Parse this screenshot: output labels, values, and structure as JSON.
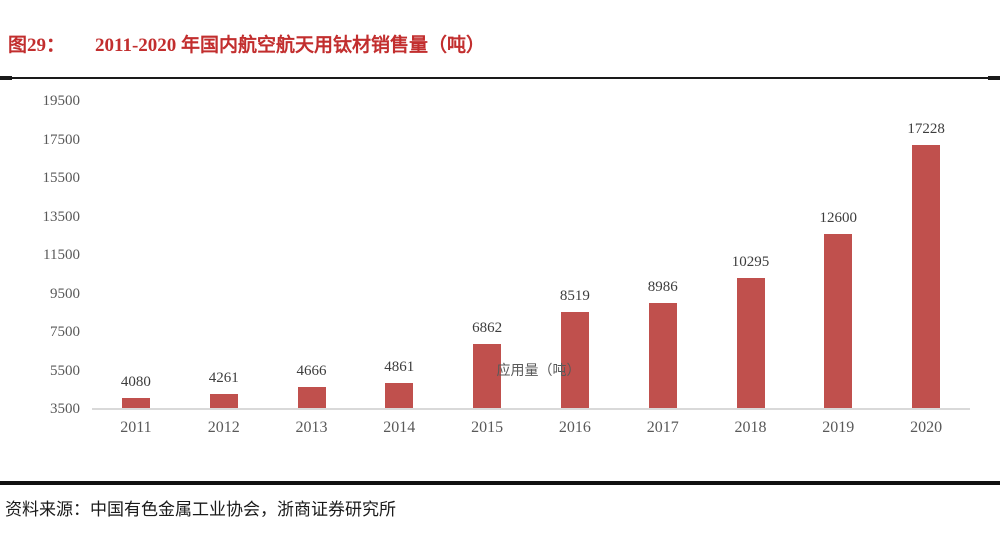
{
  "figure": {
    "label": "图29：",
    "title": "2011-2020 年国内航空航天用钛材销售量（吨）"
  },
  "chart_data": {
    "type": "bar",
    "title": "2011-2020 年国内航空航天用钛材销售量（吨）",
    "categories": [
      "2011",
      "2012",
      "2013",
      "2014",
      "2015",
      "2016",
      "2017",
      "2018",
      "2019",
      "2020"
    ],
    "values": [
      4080,
      4261,
      4666,
      4861,
      6862,
      8519,
      8986,
      10295,
      12600,
      17228
    ],
    "series_name": "应用量（吨）",
    "xlabel": "",
    "ylabel": "",
    "ylim": [
      3500,
      19500
    ],
    "yticks": [
      3500,
      5500,
      7500,
      9500,
      11500,
      13500,
      15500,
      17500,
      19500
    ],
    "grid": false,
    "legend_position": "bottom-center",
    "data_labels": true
  },
  "legend": {
    "label": "应用量（吨）"
  },
  "source": {
    "prefix": "资料来源：",
    "text": "中国有色金属工业协会，浙商证券研究所"
  },
  "colors": {
    "title": "#C22E2E",
    "bar": "#C0504D",
    "axis_line": "#D9D9D9",
    "tick_text": "#595959",
    "value_text": "#3D3D3D",
    "rule": "#1A1A1A",
    "source_text": "#1A1A1A"
  }
}
